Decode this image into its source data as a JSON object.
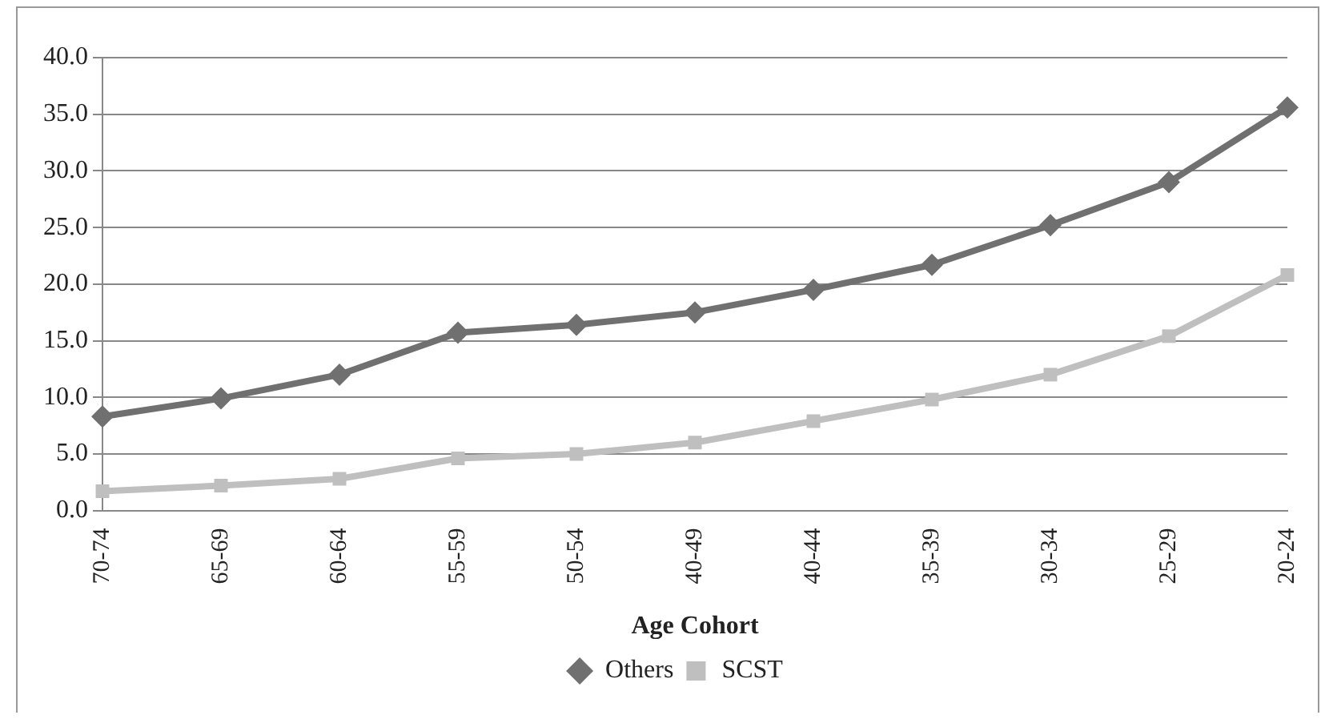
{
  "chart_data": {
    "type": "line",
    "xlabel": "Age Cohort",
    "categories": [
      "70-74",
      "65-69",
      "60-64",
      "55-59",
      "50-54",
      "40-49",
      "40-44",
      "35-39",
      "30-34",
      "25-29",
      "20-24"
    ],
    "series": [
      {
        "name": "Others",
        "color": "#707070",
        "marker": "diamond",
        "values": [
          8.3,
          9.9,
          12.0,
          15.7,
          16.4,
          17.5,
          19.5,
          21.7,
          25.2,
          29.0,
          35.6
        ]
      },
      {
        "name": "SCST",
        "color": "#bfbfbf",
        "marker": "square",
        "values": [
          1.7,
          2.2,
          2.8,
          4.6,
          5.0,
          6.0,
          7.9,
          9.8,
          12.0,
          15.4,
          20.8
        ]
      }
    ],
    "ylim": [
      0,
      40
    ],
    "yticks": [
      {
        "value": 0,
        "label": "0.0"
      },
      {
        "value": 5,
        "label": "5.0"
      },
      {
        "value": 10,
        "label": "10.0"
      },
      {
        "value": 15,
        "label": "15.0"
      },
      {
        "value": 20,
        "label": "20.0"
      },
      {
        "value": 25,
        "label": "25.0"
      },
      {
        "value": 30,
        "label": "30.0"
      },
      {
        "value": 35,
        "label": "35.0"
      },
      {
        "value": 40,
        "label": "40.0"
      }
    ],
    "grid": "y",
    "legend": "bottom",
    "line_style": "solid"
  }
}
